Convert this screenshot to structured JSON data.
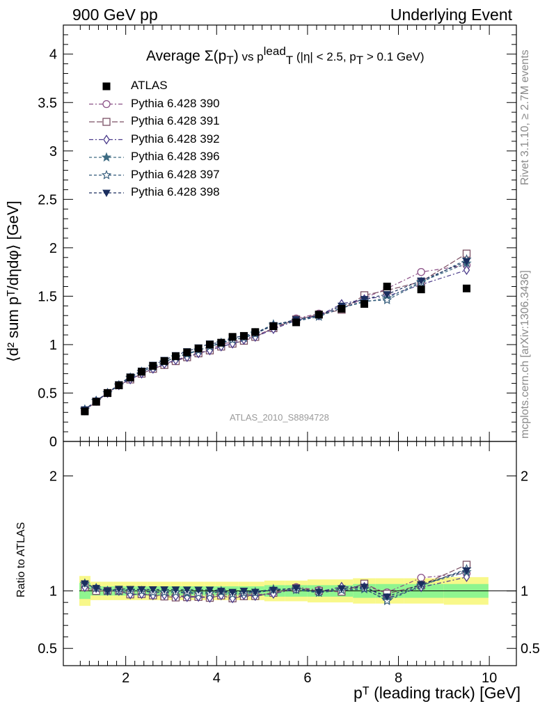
{
  "header": {
    "left": "900 GeV pp",
    "right": "Underlying Event"
  },
  "side_text": {
    "rivet": "Rivet 3.1.10, ≥ 2.7M events",
    "mcplots": "mcplots.cern.ch [arXiv:1306.3436]"
  },
  "watermark": "ATLAS_2010_S8894728",
  "title": {
    "prefix": "Average",
    "sigma": "Σ(p",
    "sigma_sub": "T",
    "sigma_close": ")",
    "vs": " vs p",
    "vs_sup": "lead",
    "vs_sub": "T",
    "cut1": " (|η| < 2.5, p",
    "cut_sub": "T",
    "cut2": " > 0.1 GeV)"
  },
  "ylabel_top": "⟨d² sum pᵀ/dηdφ⟩ [GeV]",
  "ylabel_bottom": "Ratio to ATLAS",
  "xlabel": "pᵀ (leading track) [GeV]",
  "colors": {
    "data": "#000000",
    "band_inner": "#8ff58f",
    "band_outer": "#f8f88a",
    "s390": "#8a4f86",
    "s391": "#7a4f63",
    "s392": "#4a3a8a",
    "s396": "#3d6b82",
    "s397": "#2f5778",
    "s398": "#1a2e5e"
  },
  "chart_data": {
    "type": "scatter",
    "x": [
      1.1,
      1.35,
      1.6,
      1.85,
      2.1,
      2.35,
      2.6,
      2.85,
      3.1,
      3.35,
      3.6,
      3.85,
      4.1,
      4.35,
      4.6,
      4.85,
      5.25,
      5.75,
      6.25,
      6.75,
      7.25,
      7.75,
      8.5,
      9.5
    ],
    "xlim": [
      0.75,
      10.0
    ],
    "xticks": [
      2,
      4,
      6,
      8,
      10
    ],
    "ylim_top": [
      0,
      4.3
    ],
    "yticks_top": [
      "0",
      "0.5",
      "1",
      "1.5",
      "2",
      "2.5",
      "3",
      "3.5",
      "4"
    ],
    "ylim_bottom": [
      0.35,
      2.3
    ],
    "yticks_bottom": [
      "0.5",
      "1",
      "2"
    ],
    "atlas": {
      "name": "ATLAS",
      "values": [
        0.31,
        0.41,
        0.5,
        0.58,
        0.66,
        0.72,
        0.78,
        0.83,
        0.88,
        0.92,
        0.96,
        1.0,
        1.02,
        1.08,
        1.09,
        1.13,
        1.19,
        1.23,
        1.31,
        1.37,
        1.42,
        1.6,
        1.57,
        1.58
      ],
      "band_inner_rel": [
        0.07,
        0.04,
        0.04,
        0.04,
        0.04,
        0.04,
        0.04,
        0.04,
        0.04,
        0.04,
        0.04,
        0.04,
        0.04,
        0.04,
        0.04,
        0.04,
        0.05,
        0.05,
        0.05,
        0.05,
        0.06,
        0.06,
        0.06,
        0.06
      ],
      "band_outer_rel": [
        0.13,
        0.08,
        0.08,
        0.08,
        0.08,
        0.08,
        0.08,
        0.08,
        0.08,
        0.08,
        0.08,
        0.08,
        0.08,
        0.08,
        0.08,
        0.08,
        0.09,
        0.09,
        0.1,
        0.1,
        0.11,
        0.11,
        0.11,
        0.12
      ]
    },
    "series": [
      {
        "name": "Pythia 6.428 390",
        "marker": "circle-open",
        "dash": "6,3,2,3",
        "values": [
          0.32,
          0.41,
          0.5,
          0.58,
          0.64,
          0.7,
          0.75,
          0.8,
          0.84,
          0.88,
          0.91,
          0.95,
          1.0,
          1.03,
          1.06,
          1.09,
          1.17,
          1.27,
          1.32,
          1.37,
          1.48,
          1.58,
          1.75,
          1.82
        ]
      },
      {
        "name": "Pythia 6.428 391",
        "marker": "square-open",
        "dash": "8,3",
        "values": [
          0.32,
          0.41,
          0.5,
          0.58,
          0.64,
          0.7,
          0.75,
          0.79,
          0.83,
          0.87,
          0.91,
          0.94,
          0.98,
          1.01,
          1.04,
          1.08,
          1.17,
          1.26,
          1.31,
          1.36,
          1.51,
          1.56,
          1.65,
          1.94
        ]
      },
      {
        "name": "Pythia 6.428 392",
        "marker": "diamond-open",
        "dash": "6,3,2,3",
        "values": [
          0.32,
          0.42,
          0.5,
          0.58,
          0.64,
          0.7,
          0.75,
          0.8,
          0.84,
          0.87,
          0.91,
          0.94,
          0.98,
          1.01,
          1.05,
          1.08,
          1.16,
          1.25,
          1.3,
          1.42,
          1.47,
          1.5,
          1.62,
          1.77
        ]
      },
      {
        "name": "Pythia 6.428 396",
        "marker": "star-filled",
        "dash": "4,3",
        "values": [
          0.33,
          0.42,
          0.5,
          0.58,
          0.66,
          0.72,
          0.77,
          0.82,
          0.87,
          0.9,
          0.94,
          0.98,
          1.01,
          1.05,
          1.07,
          1.12,
          1.21,
          1.25,
          1.29,
          1.38,
          1.44,
          1.48,
          1.65,
          1.84
        ]
      },
      {
        "name": "Pythia 6.428 397",
        "marker": "star-open",
        "dash": "4,3",
        "values": [
          0.33,
          0.42,
          0.5,
          0.58,
          0.66,
          0.72,
          0.77,
          0.82,
          0.87,
          0.91,
          0.94,
          0.98,
          1.02,
          1.05,
          1.07,
          1.11,
          1.2,
          1.24,
          1.29,
          1.38,
          1.45,
          1.46,
          1.64,
          1.88
        ]
      },
      {
        "name": "Pythia 6.428 398",
        "marker": "triangle-down-filled",
        "dash": "4,3",
        "values": [
          0.33,
          0.42,
          0.5,
          0.59,
          0.67,
          0.73,
          0.79,
          0.84,
          0.89,
          0.93,
          0.97,
          1.01,
          1.02,
          1.07,
          1.09,
          1.12,
          1.2,
          1.26,
          1.3,
          1.4,
          1.47,
          1.52,
          1.66,
          1.86
        ]
      }
    ]
  }
}
